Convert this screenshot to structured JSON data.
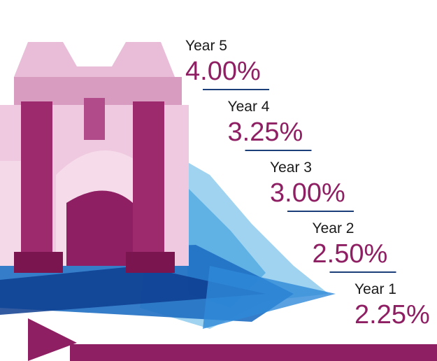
{
  "steps": [
    {
      "label": "Year 5",
      "value": "4.00%"
    },
    {
      "label": "Year 4",
      "value": "3.25%"
    },
    {
      "label": "Year 3",
      "value": "3.00%"
    },
    {
      "label": "Year 2",
      "value": "2.50%"
    },
    {
      "label": "Year 1",
      "value": "2.25%"
    }
  ]
}
